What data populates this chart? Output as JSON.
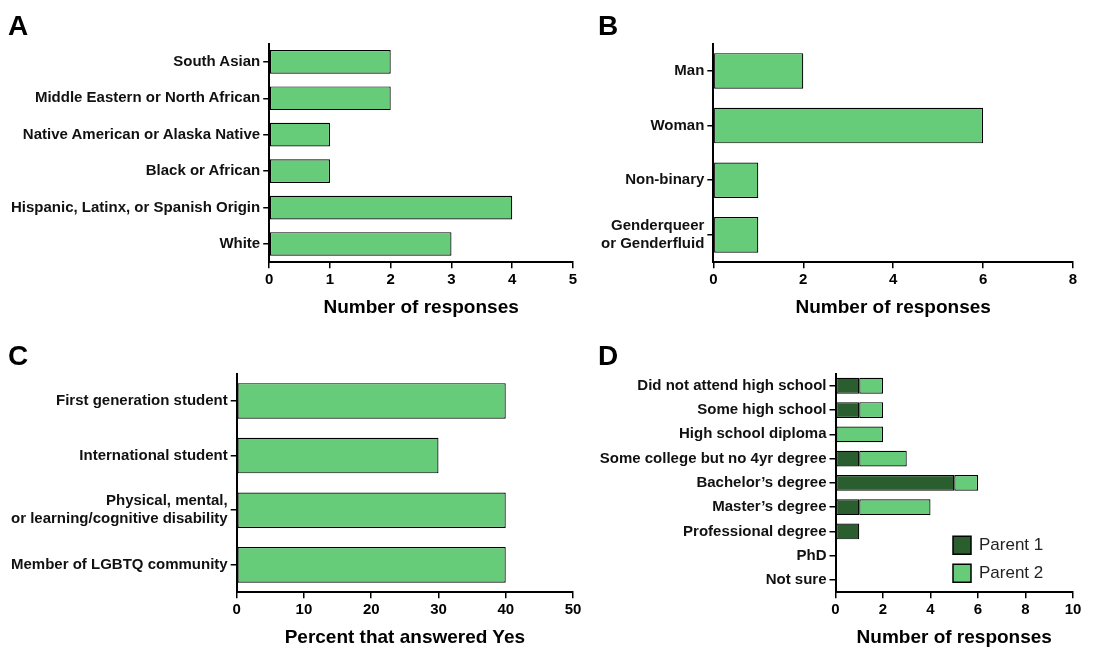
{
  "chart_data": [
    {
      "type": "bar",
      "title": "A",
      "orientation": "horizontal",
      "categories": [
        "South Asian",
        "Middle Eastern or North African",
        "Native American or Alaska Native",
        "Black or African",
        "Hispanic, Latinx, or Spanish Origin",
        "White"
      ],
      "values": [
        2,
        2,
        1,
        1,
        4,
        3
      ],
      "color": "#66cc7a",
      "xlim": [
        0,
        5
      ],
      "xticks": [
        0,
        1,
        2,
        3,
        4,
        5
      ],
      "xlabel": "Number of responses",
      "grid": false,
      "legend": false
    },
    {
      "type": "bar",
      "title": "B",
      "orientation": "horizontal",
      "categories": [
        "Man",
        "Woman",
        "Non-binary",
        "Genderqueer\nor Genderfluid"
      ],
      "values": [
        2,
        6,
        1,
        1
      ],
      "color": "#66cc7a",
      "xlim": [
        0,
        8
      ],
      "xticks": [
        0,
        2,
        4,
        6,
        8
      ],
      "xlabel": "Number of responses",
      "grid": false,
      "legend": false
    },
    {
      "type": "bar",
      "title": "C",
      "orientation": "horizontal",
      "categories": [
        "First generation student",
        "International student",
        "Physical, mental,\nor learning/cognitive disability",
        "Member of LGBTQ community"
      ],
      "values": [
        40,
        30,
        40,
        40
      ],
      "color": "#66cc7a",
      "xlim": [
        0,
        50
      ],
      "xticks": [
        0,
        10,
        20,
        30,
        40,
        50
      ],
      "xlabel": "Percent that answered Yes",
      "grid": false,
      "legend": false
    },
    {
      "type": "bar",
      "title": "D",
      "orientation": "horizontal",
      "stacked": true,
      "categories": [
        "Did not attend high school",
        "Some high school",
        "High school diploma",
        "Some college but no 4yr degree",
        "Bachelor’s degree",
        "Master’s degree",
        "Professional degree",
        "PhD",
        "Not sure"
      ],
      "series": [
        {
          "name": "Parent 1",
          "color": "#2a5e2e",
          "values": [
            1,
            1,
            0,
            1,
            5,
            1,
            1,
            0,
            0
          ]
        },
        {
          "name": "Parent 2",
          "color": "#66cc7a",
          "values": [
            1,
            1,
            2,
            2,
            1,
            3,
            0,
            0,
            0
          ]
        }
      ],
      "xlim": [
        0,
        10
      ],
      "xticks": [
        0,
        2,
        4,
        6,
        8,
        10
      ],
      "xlabel": "Number of responses",
      "grid": false,
      "legend": "bottom right"
    }
  ]
}
